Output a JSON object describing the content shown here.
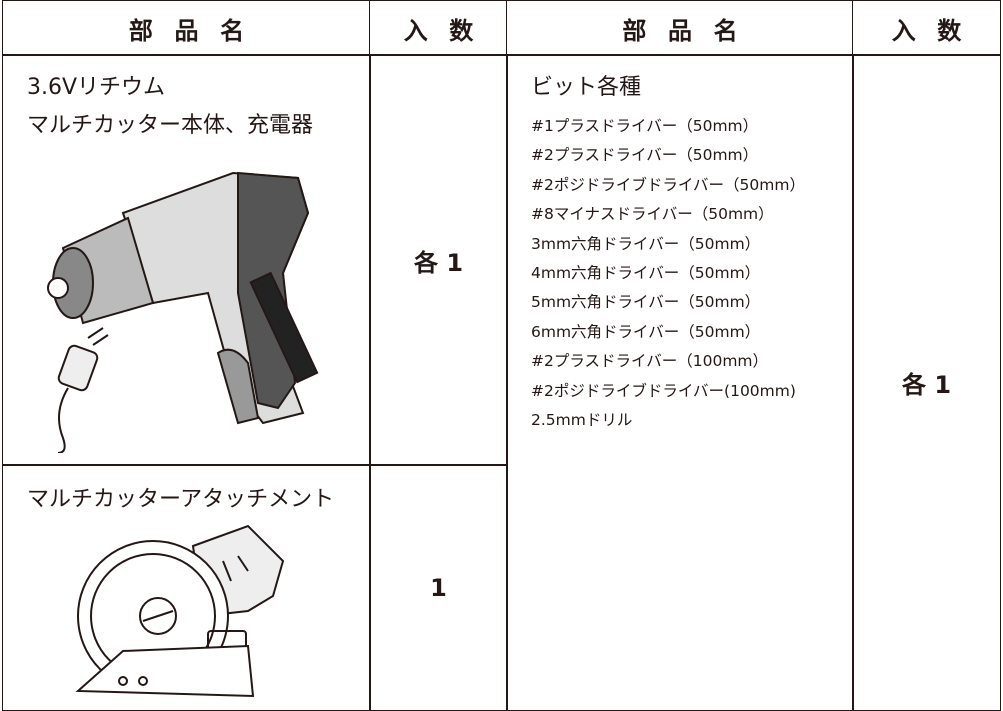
{
  "table": {
    "header": [
      "部品名",
      "入数",
      "部品名",
      "入数"
    ],
    "rows": [
      {
        "name": [
          "3.6Vリチウム",
          "マルチカッター本体、充電器"
        ],
        "qty": "各1"
      },
      {
        "name": [
          "マルチカッターアタッチメント"
        ],
        "qty": "1"
      }
    ],
    "right": {
      "title": "ビット各種",
      "items": [
        "#1プラスドライバー（50mm）",
        "#2プラスドライバー（50mm）",
        "#2ポジドライブドライバー（50mm）",
        "#8マイナスドライバー（50mm）",
        "3mm六角ドライバー（50mm）",
        "4mm六角ドライバー（50mm）",
        "5mm六角ドライバー（50mm）",
        "6mm六角ドライバー（50mm）",
        "#2プラスドライバー（100mm）",
        "#2ポジドライブドライバー(100mm)",
        "2.5mmドリル"
      ],
      "qty": "各1"
    }
  }
}
